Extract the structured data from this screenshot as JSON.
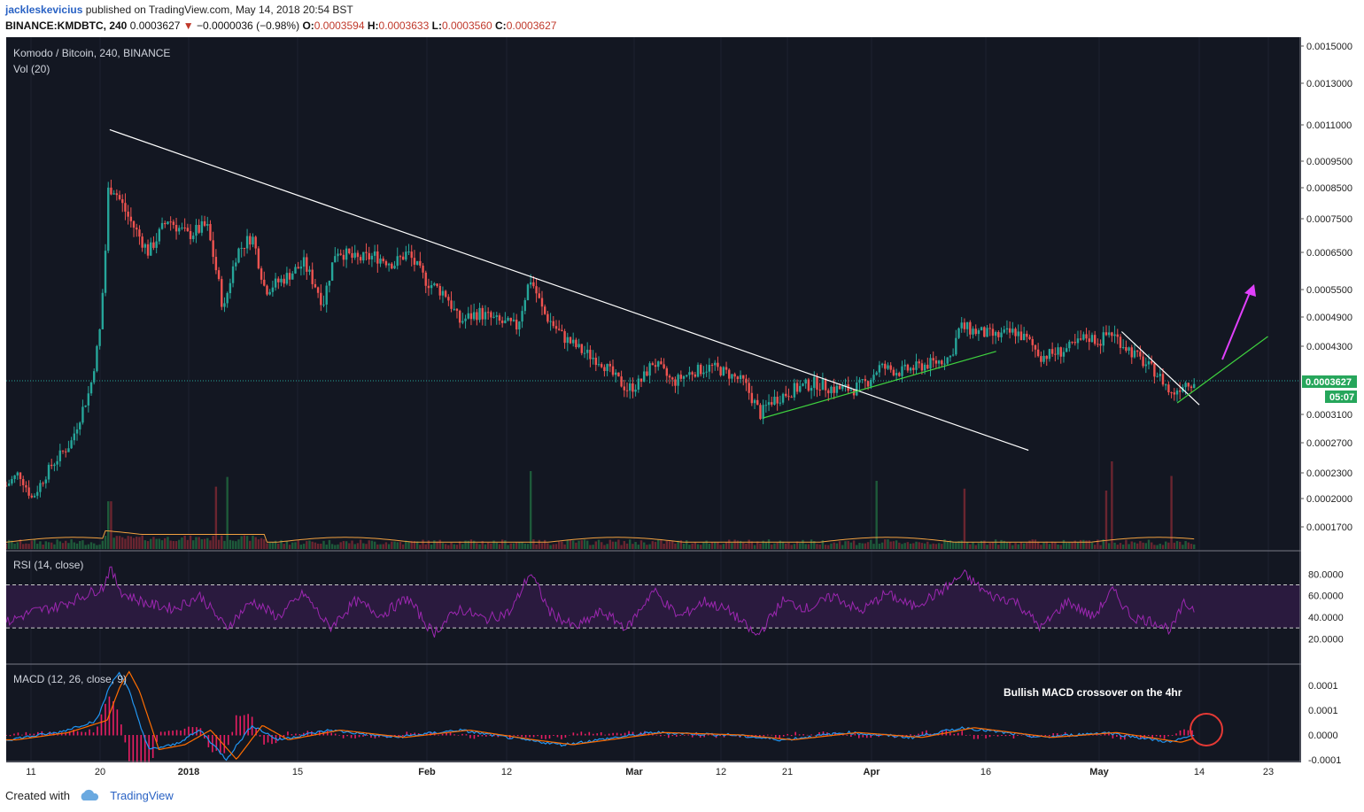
{
  "header": {
    "author": "jackleskevicius",
    "published_text": "published on TradingView.com, May 14, 2018 20:54 BST",
    "symbol": "BINANCE:KMDBTC, 240",
    "last": "0.0003627",
    "change": "−0.0000036 (−0.98%)",
    "o_label": "O:",
    "o_val": "0.0003594",
    "h_label": "H:",
    "h_val": "0.0003633",
    "l_label": "L:",
    "l_val": "0.0003560",
    "c_label": "C:",
    "c_val": "0.0003627"
  },
  "panes": {
    "main_title": "Komodo / Bitcoin, 240, BINANCE",
    "vol_title": "Vol (20)",
    "rsi_title": "RSI (14, close)",
    "macd_title": "MACD (12, 26, close, 9)",
    "annotation": "Bullish MACD crossover on the 4hr",
    "price_tag": "0.0003627",
    "time_tag": "05:07"
  },
  "footer": {
    "created": "Created with",
    "brand": "TradingView"
  },
  "colors": {
    "bg": "#131722",
    "up": "#26a69a",
    "down": "#ef5350",
    "volume_ma": "#f0a040",
    "rsi_line": "#9c27b0",
    "rsi_band": "#2a1a3e",
    "macd": "#2196f3",
    "signal": "#ff6d00",
    "trend_white": "#ffffff",
    "trend_green": "#4caf50",
    "arrow": "#e040fb",
    "circle": "#e53935"
  },
  "chart_data": {
    "type": "candlestick",
    "title": "Komodo / Bitcoin, 240, BINANCE",
    "x_tick_labels": [
      "11",
      "20",
      "2018",
      "15",
      "Feb",
      "12",
      "Mar",
      "12",
      "21",
      "Apr",
      "16",
      "May",
      "14",
      "23"
    ],
    "price_axis_labels": [
      "0.0015000",
      "0.0013000",
      "0.0011000",
      "0.0009500",
      "0.0008500",
      "0.0007500",
      "0.0006500",
      "0.0005500",
      "0.0004900",
      "0.0004300",
      "0.0003627",
      "0.0003100",
      "0.0002700",
      "0.0002300",
      "0.0002000",
      "0.0001700"
    ],
    "price_axis_values": [
      0.0015,
      0.0013,
      0.0011,
      0.00095,
      0.00085,
      0.00075,
      0.00065,
      0.00055,
      0.00049,
      0.00043,
      0.0003627,
      0.00031,
      0.00027,
      0.00023,
      0.0002,
      0.00017
    ],
    "rsi_axis_labels": [
      "80.0000",
      "60.0000",
      "40.0000",
      "20.0000"
    ],
    "rsi_axis_values": [
      80,
      60,
      40,
      20
    ],
    "rsi_band": [
      30,
      70
    ],
    "macd_axis_labels": [
      "0.0001",
      "0.0001",
      "0.0000",
      "-0.0001"
    ],
    "price_path": [
      [
        0,
        0.000215
      ],
      [
        0.01,
        0.00023
      ],
      [
        0.02,
        0.0002
      ],
      [
        0.035,
        0.00024
      ],
      [
        0.05,
        0.00027
      ],
      [
        0.065,
        0.00035
      ],
      [
        0.072,
        0.00045
      ],
      [
        0.076,
        0.0006
      ],
      [
        0.079,
        0.00085
      ],
      [
        0.083,
        0.00085
      ],
      [
        0.095,
        0.00075
      ],
      [
        0.11,
        0.00065
      ],
      [
        0.125,
        0.00075
      ],
      [
        0.14,
        0.0007
      ],
      [
        0.155,
        0.00073
      ],
      [
        0.168,
        0.0005
      ],
      [
        0.178,
        0.00065
      ],
      [
        0.19,
        0.0007
      ],
      [
        0.2,
        0.00055
      ],
      [
        0.215,
        0.00058
      ],
      [
        0.23,
        0.00062
      ],
      [
        0.245,
        0.00052
      ],
      [
        0.255,
        0.00066
      ],
      [
        0.27,
        0.00063
      ],
      [
        0.285,
        0.00064
      ],
      [
        0.3,
        0.00062
      ],
      [
        0.31,
        0.00065
      ],
      [
        0.325,
        0.00057
      ],
      [
        0.34,
        0.00054
      ],
      [
        0.35,
        0.00048
      ],
      [
        0.365,
        0.0005
      ],
      [
        0.38,
        0.00048
      ],
      [
        0.395,
        0.00047
      ],
      [
        0.405,
        0.00058
      ],
      [
        0.415,
        0.0005
      ],
      [
        0.43,
        0.00045
      ],
      [
        0.445,
        0.00042
      ],
      [
        0.46,
        0.0004
      ],
      [
        0.47,
        0.00037
      ],
      [
        0.48,
        0.00035
      ],
      [
        0.49,
        0.00036
      ],
      [
        0.5,
        0.0004
      ],
      [
        0.515,
        0.00036
      ],
      [
        0.53,
        0.00038
      ],
      [
        0.545,
        0.00039
      ],
      [
        0.555,
        0.00038
      ],
      [
        0.57,
        0.00036
      ],
      [
        0.583,
        0.00031
      ],
      [
        0.59,
        0.00033
      ],
      [
        0.61,
        0.00035
      ],
      [
        0.625,
        0.00036
      ],
      [
        0.64,
        0.00035
      ],
      [
        0.655,
        0.00035
      ],
      [
        0.665,
        0.00036
      ],
      [
        0.675,
        0.00039
      ],
      [
        0.69,
        0.00038
      ],
      [
        0.705,
        0.00039
      ],
      [
        0.72,
        0.0004
      ],
      [
        0.73,
        0.00041
      ],
      [
        0.737,
        0.00047
      ],
      [
        0.75,
        0.00046
      ],
      [
        0.765,
        0.00045
      ],
      [
        0.78,
        0.00046
      ],
      [
        0.79,
        0.00044
      ],
      [
        0.8,
        0.00041
      ],
      [
        0.815,
        0.00042
      ],
      [
        0.825,
        0.00043
      ],
      [
        0.835,
        0.00045
      ],
      [
        0.845,
        0.00044
      ],
      [
        0.853,
        0.00046
      ],
      [
        0.865,
        0.00043
      ],
      [
        0.878,
        0.0004
      ],
      [
        0.888,
        0.00038
      ],
      [
        0.895,
        0.00036
      ],
      [
        0.9,
        0.00034
      ],
      [
        0.91,
        0.00036
      ],
      [
        0.918,
        0.0003627
      ]
    ],
    "volume_spikes": [
      [
        0.08,
        0.45
      ],
      [
        0.162,
        0.6
      ],
      [
        0.17,
        0.7
      ],
      [
        0.405,
        0.8
      ],
      [
        0.672,
        0.7
      ],
      [
        0.74,
        0.62
      ],
      [
        0.85,
        0.6
      ],
      [
        0.855,
        0.9
      ],
      [
        0.9,
        0.75
      ]
    ],
    "rsi_path": [
      [
        0,
        35
      ],
      [
        0.02,
        45
      ],
      [
        0.04,
        50
      ],
      [
        0.06,
        60
      ],
      [
        0.075,
        68
      ],
      [
        0.08,
        85
      ],
      [
        0.09,
        62
      ],
      [
        0.11,
        52
      ],
      [
        0.13,
        48
      ],
      [
        0.15,
        60
      ],
      [
        0.17,
        30
      ],
      [
        0.19,
        55
      ],
      [
        0.21,
        40
      ],
      [
        0.23,
        62
      ],
      [
        0.25,
        30
      ],
      [
        0.27,
        55
      ],
      [
        0.29,
        42
      ],
      [
        0.31,
        58
      ],
      [
        0.33,
        25
      ],
      [
        0.35,
        48
      ],
      [
        0.37,
        38
      ],
      [
        0.39,
        45
      ],
      [
        0.405,
        82
      ],
      [
        0.42,
        45
      ],
      [
        0.44,
        30
      ],
      [
        0.46,
        45
      ],
      [
        0.48,
        30
      ],
      [
        0.5,
        65
      ],
      [
        0.52,
        40
      ],
      [
        0.54,
        55
      ],
      [
        0.56,
        45
      ],
      [
        0.58,
        22
      ],
      [
        0.6,
        55
      ],
      [
        0.62,
        48
      ],
      [
        0.64,
        60
      ],
      [
        0.66,
        45
      ],
      [
        0.68,
        62
      ],
      [
        0.7,
        50
      ],
      [
        0.72,
        62
      ],
      [
        0.74,
        80
      ],
      [
        0.76,
        60
      ],
      [
        0.78,
        55
      ],
      [
        0.8,
        30
      ],
      [
        0.82,
        55
      ],
      [
        0.84,
        40
      ],
      [
        0.855,
        65
      ],
      [
        0.87,
        40
      ],
      [
        0.89,
        35
      ],
      [
        0.9,
        28
      ],
      [
        0.91,
        52
      ],
      [
        0.918,
        48
      ]
    ],
    "macd_path": [
      [
        0,
        -0.1
      ],
      [
        0.04,
        0.05
      ],
      [
        0.07,
        0.3
      ],
      [
        0.08,
        1.0
      ],
      [
        0.087,
        1.3
      ],
      [
        0.095,
        0.9
      ],
      [
        0.11,
        -0.3
      ],
      [
        0.13,
        -0.2
      ],
      [
        0.15,
        0.1
      ],
      [
        0.17,
        -0.5
      ],
      [
        0.19,
        0.2
      ],
      [
        0.21,
        -0.1
      ],
      [
        0.25,
        0.1
      ],
      [
        0.3,
        -0.05
      ],
      [
        0.35,
        0.1
      ],
      [
        0.4,
        -0.1
      ],
      [
        0.43,
        -0.2
      ],
      [
        0.5,
        0.05
      ],
      [
        0.56,
        0.0
      ],
      [
        0.6,
        -0.1
      ],
      [
        0.65,
        0.05
      ],
      [
        0.7,
        -0.05
      ],
      [
        0.74,
        0.15
      ],
      [
        0.8,
        -0.05
      ],
      [
        0.85,
        0.05
      ],
      [
        0.9,
        -0.15
      ],
      [
        0.918,
        0.0
      ]
    ],
    "trendlines": [
      {
        "color": "white",
        "from": [
          0.08,
          0.00108
        ],
        "to": [
          0.79,
          0.00026
        ]
      },
      {
        "color": "green",
        "from": [
          0.585,
          0.000305
        ],
        "to": [
          0.765,
          0.00042
        ]
      },
      {
        "color": "white",
        "from": [
          0.862,
          0.00046
        ],
        "to": [
          0.922,
          0.000325
        ]
      },
      {
        "color": "green",
        "from": [
          0.905,
          0.000328
        ],
        "to": [
          0.975,
          0.00045
        ]
      }
    ]
  }
}
